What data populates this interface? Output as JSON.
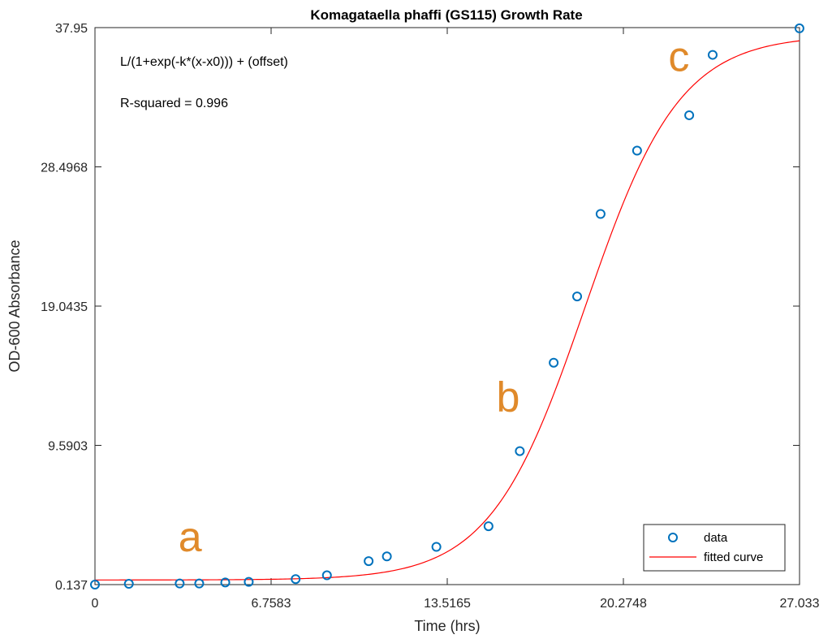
{
  "colors": {
    "data_marker": "#0072BD",
    "fit_line": "#FF0000",
    "letters": "#E08A2B",
    "axes": "#262626"
  },
  "chart_data": {
    "type": "scatter",
    "title": "Komagataella phaffi (GS115) Growth Rate",
    "xlabel": "Time (hrs)",
    "ylabel": "OD-600 Absorbance",
    "xlim": [
      0,
      27.033
    ],
    "ylim": [
      0.137,
      37.95
    ],
    "xticks": [
      "0",
      "6.7583",
      "13.5165",
      "20.2748",
      "27.033"
    ],
    "yticks": [
      "0.137",
      "9.5903",
      "19.0435",
      "28.4968",
      "37.95"
    ],
    "grid": false,
    "legend_position": "bottom-right",
    "series": [
      {
        "name": "data",
        "kind": "markers",
        "x": [
          0,
          1.3,
          3.25,
          4.0,
          5.0,
          5.9,
          7.7,
          8.9,
          10.5,
          11.2,
          13.1,
          15.1,
          16.3,
          17.6,
          18.5,
          19.4,
          20.8,
          22.8,
          23.7,
          27.03
        ],
        "y": [
          0.137,
          0.19,
          0.21,
          0.21,
          0.28,
          0.32,
          0.51,
          0.77,
          1.73,
          2.05,
          2.7,
          4.1,
          9.2,
          15.2,
          19.7,
          25.3,
          29.6,
          32.0,
          36.1,
          37.9
        ]
      },
      {
        "name": "fitted curve",
        "kind": "line",
        "model": {
          "L": 37.0,
          "k": 0.55,
          "x0": 18.8,
          "offset": 0.45
        }
      }
    ],
    "annotations": {
      "equation": "L/(1+exp(-k*(x-x0))) + (offset)",
      "r_squared": "R-squared = 0.996",
      "phase_labels": [
        {
          "text": "a",
          "x": 3.2,
          "y": 2.4
        },
        {
          "text": "b",
          "x": 15.4,
          "y": 11.9
        },
        {
          "text": "c",
          "x": 22.0,
          "y": 35.0
        }
      ]
    }
  }
}
